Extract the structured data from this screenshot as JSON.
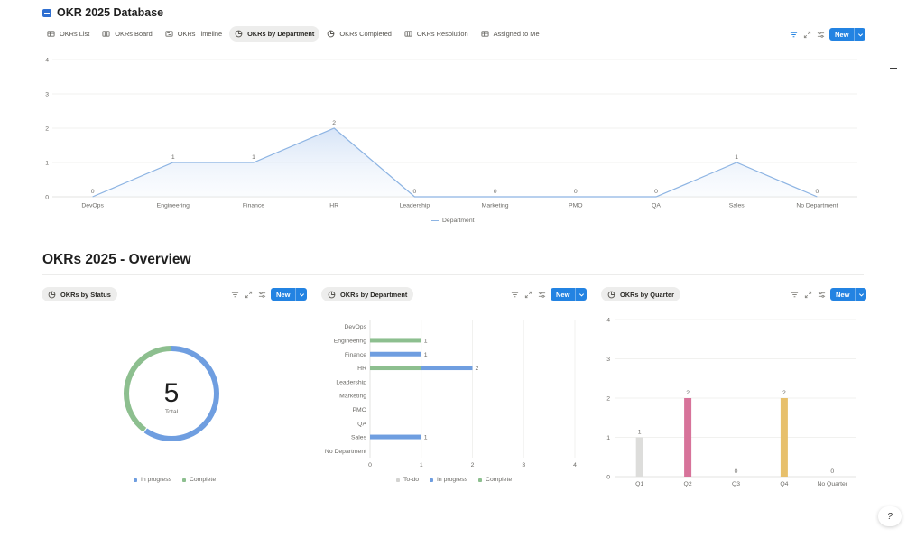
{
  "page": {
    "title": "OKR 2025 Database",
    "section_title": "OKRs 2025 - Overview"
  },
  "tabs": [
    {
      "label": "OKRs List",
      "icon": "table-icon",
      "active": false
    },
    {
      "label": "OKRs Board",
      "icon": "board-icon",
      "active": false
    },
    {
      "label": "OKRs Timeline",
      "icon": "timeline-icon",
      "active": false
    },
    {
      "label": "OKRs by Department",
      "icon": "chart-icon",
      "active": true
    },
    {
      "label": "OKRs Completed",
      "icon": "chart-icon",
      "active": false
    },
    {
      "label": "OKRs Resolution",
      "icon": "board-icon",
      "active": false
    },
    {
      "label": "Assigned to Me",
      "icon": "table-icon",
      "active": false
    }
  ],
  "toolbar": {
    "new_label": "New"
  },
  "panels": {
    "status": {
      "chip": "OKRs by Status",
      "new_label": "New"
    },
    "department": {
      "chip": "OKRs by Department",
      "new_label": "New"
    },
    "quarter": {
      "chip": "OKRs by Quarter",
      "new_label": "New"
    }
  },
  "colors": {
    "accent": "#2383e2",
    "in_progress": "#6f9ee0",
    "complete": "#8dbf8f",
    "todo": "#d3d3d1",
    "line": "#8db4e3",
    "q1": "#dddddb",
    "q2": "#d7739a",
    "q4": "#e7c06c"
  },
  "chart_data": [
    {
      "id": "department_line",
      "type": "line",
      "categories": [
        "DevOps",
        "Engineering",
        "Finance",
        "HR",
        "Leadership",
        "Marketing",
        "PMO",
        "QA",
        "Sales",
        "No Department"
      ],
      "series": [
        {
          "name": "Department",
          "values": [
            0,
            1,
            1,
            2,
            0,
            0,
            0,
            0,
            1,
            0
          ]
        }
      ],
      "ylim": [
        0,
        4
      ],
      "yticks": [
        0,
        1,
        2,
        3,
        4
      ],
      "grid": true,
      "area_fill": true,
      "legend": "bottom"
    },
    {
      "id": "status_donut",
      "type": "pie",
      "donut": true,
      "center_value": "5",
      "center_label": "Total",
      "slices": [
        {
          "name": "In progress",
          "value": 3
        },
        {
          "name": "Complete",
          "value": 2
        }
      ],
      "legend": "bottom"
    },
    {
      "id": "department_bar",
      "type": "bar",
      "orientation": "horizontal",
      "stacked": true,
      "categories": [
        "DevOps",
        "Engineering",
        "Finance",
        "HR",
        "Leadership",
        "Marketing",
        "PMO",
        "QA",
        "Sales",
        "No Department"
      ],
      "series": [
        {
          "name": "To-do",
          "values": [
            0,
            0,
            0,
            0,
            0,
            0,
            0,
            0,
            0,
            0
          ]
        },
        {
          "name": "In progress",
          "values": [
            0,
            0,
            1,
            1,
            0,
            0,
            0,
            0,
            1,
            0
          ]
        },
        {
          "name": "Complete",
          "values": [
            0,
            1,
            0,
            1,
            0,
            0,
            0,
            0,
            0,
            0
          ]
        }
      ],
      "totals": [
        null,
        1,
        1,
        2,
        null,
        null,
        null,
        null,
        1,
        null
      ],
      "xlim": [
        0,
        4
      ],
      "xticks": [
        0,
        1,
        2,
        3,
        4
      ],
      "grid": true,
      "legend": "bottom"
    },
    {
      "id": "quarter_bar",
      "type": "bar",
      "categories": [
        "Q1",
        "Q2",
        "Q3",
        "Q4",
        "No Quarter"
      ],
      "values": [
        1,
        2,
        0,
        2,
        0
      ],
      "value_labels": [
        "1",
        "2",
        "0",
        "2",
        "0"
      ],
      "ylim": [
        0,
        4
      ],
      "yticks": [
        0,
        1,
        2,
        3,
        4
      ],
      "grid": true
    }
  ]
}
